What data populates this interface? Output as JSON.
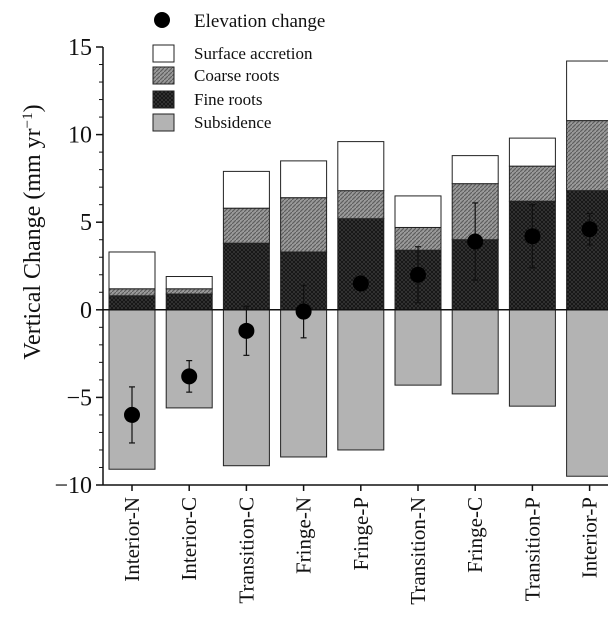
{
  "chart_data": {
    "type": "bar",
    "stacked": true,
    "ylabel": "Vertical Change (mm yr",
    "ylabel_sup": "−1",
    "ylabel_close": ")",
    "ylim": [
      -10,
      15
    ],
    "yticks": [
      -10,
      -5,
      0,
      5,
      10,
      15
    ],
    "grid": false,
    "legend_position": "top-left",
    "categories": [
      "Interior-N",
      "Interior-C",
      "Transition-C",
      "Fringe-N",
      "Fringe-P",
      "Transition-N",
      "Fringe-C",
      "Transition-P",
      "Interior-P"
    ],
    "series": [
      {
        "name": "Subsidence",
        "color": "#b3b3b3",
        "pattern": "none",
        "values": [
          -9.1,
          -5.6,
          -8.9,
          -8.4,
          -8.0,
          -4.3,
          -4.8,
          -5.5,
          -9.5
        ]
      },
      {
        "name": "Fine roots",
        "color": "#2e2e2e",
        "pattern": "dark-crosshatch",
        "values": [
          0.8,
          0.9,
          3.8,
          3.3,
          5.2,
          3.4,
          4.0,
          6.2,
          6.8
        ]
      },
      {
        "name": "Coarse roots",
        "color": "#8a8a8a",
        "pattern": "hatched",
        "values": [
          0.4,
          0.3,
          2.0,
          3.1,
          1.6,
          1.3,
          3.2,
          2.0,
          4.0
        ]
      },
      {
        "name": "Surface accretion",
        "color": "#ffffff",
        "pattern": "none",
        "values": [
          2.1,
          0.7,
          2.1,
          2.1,
          2.8,
          1.8,
          1.6,
          1.6,
          3.4
        ]
      }
    ],
    "elevation_change": {
      "name": "Elevation change",
      "values": [
        -6.0,
        -3.8,
        -1.2,
        -0.1,
        1.5,
        2.0,
        3.9,
        4.2,
        4.6
      ],
      "error": [
        1.6,
        0.9,
        1.4,
        1.5,
        0.0,
        1.6,
        2.2,
        1.8,
        0.9
      ]
    }
  }
}
